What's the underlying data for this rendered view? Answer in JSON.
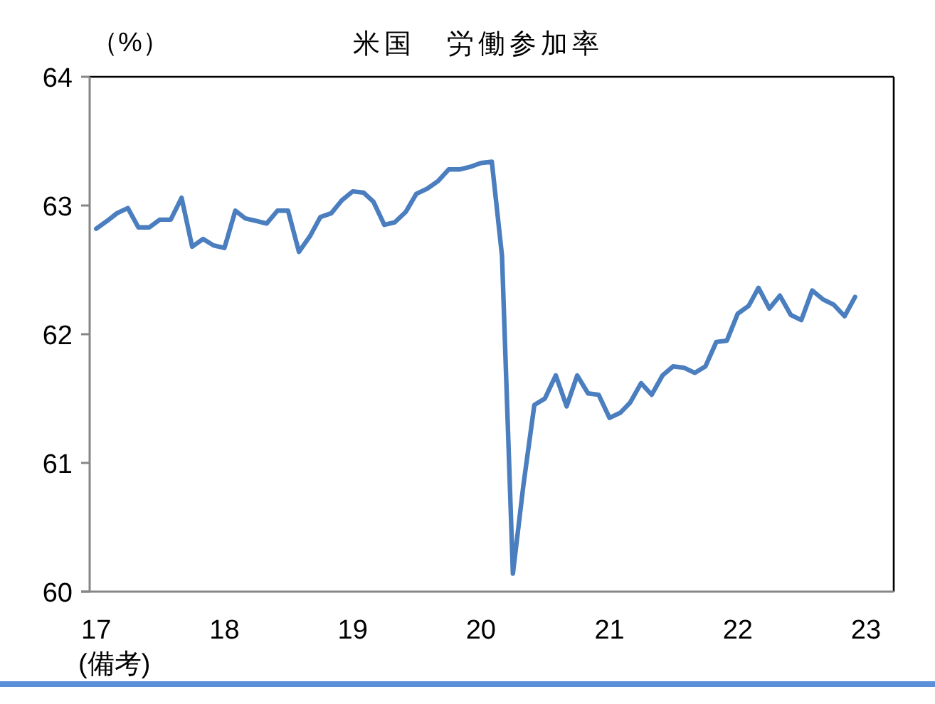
{
  "chart_data": {
    "type": "line",
    "title": "米国　労働参加率",
    "ylabel": "（%）",
    "annotations": [
      "(備考)"
    ],
    "x": [
      "2017-01",
      "2017-02",
      "2017-03",
      "2017-04",
      "2017-05",
      "2017-06",
      "2017-07",
      "2017-08",
      "2017-09",
      "2017-10",
      "2017-11",
      "2017-12",
      "2018-01",
      "2018-02",
      "2018-03",
      "2018-04",
      "2018-05",
      "2018-06",
      "2018-07",
      "2018-08",
      "2018-09",
      "2018-10",
      "2018-11",
      "2018-12",
      "2019-01",
      "2019-02",
      "2019-03",
      "2019-04",
      "2019-05",
      "2019-06",
      "2019-07",
      "2019-08",
      "2019-09",
      "2019-10",
      "2019-11",
      "2019-12",
      "2020-01",
      "2020-02",
      "2020-03",
      "2020-04",
      "2020-05",
      "2020-06",
      "2020-07",
      "2020-08",
      "2020-09",
      "2020-10",
      "2020-11",
      "2020-12",
      "2021-01",
      "2021-02",
      "2021-03",
      "2021-04",
      "2021-05",
      "2021-06",
      "2021-07",
      "2021-08",
      "2021-09",
      "2021-10",
      "2021-11",
      "2021-12",
      "2022-01",
      "2022-02",
      "2022-03",
      "2022-04",
      "2022-05",
      "2022-06",
      "2022-07",
      "2022-08",
      "2022-09",
      "2022-10",
      "2022-11",
      "2022-12"
    ],
    "series": [
      {
        "color": "#4a7ebf",
        "values": [
          62.82,
          62.88,
          62.94,
          62.98,
          62.83,
          62.83,
          62.89,
          62.89,
          63.06,
          62.68,
          62.74,
          62.69,
          62.67,
          62.96,
          62.9,
          62.88,
          62.86,
          62.96,
          62.96,
          62.64,
          62.76,
          62.91,
          62.94,
          63.04,
          63.11,
          63.1,
          63.03,
          62.85,
          62.87,
          62.95,
          63.09,
          63.13,
          63.19,
          63.28,
          63.28,
          63.3,
          63.33,
          63.34,
          62.61,
          60.14,
          60.83,
          61.45,
          61.5,
          61.68,
          61.44,
          61.68,
          61.54,
          61.53,
          61.35,
          61.39,
          61.47,
          61.62,
          61.53,
          61.68,
          61.75,
          61.74,
          61.7,
          61.75,
          61.94,
          61.95,
          62.16,
          62.22,
          62.36,
          62.2,
          62.3,
          62.15,
          62.11,
          62.34,
          62.27,
          62.23,
          62.14,
          62.29
        ]
      }
    ],
    "xlim": [
      "2016-11-19",
      "2023-03-21"
    ],
    "xticks": [
      {
        "value": "2017-01",
        "label": "17"
      },
      {
        "value": "2018-01",
        "label": "18"
      },
      {
        "value": "2019-01",
        "label": "19"
      },
      {
        "value": "2020-01",
        "label": "20"
      },
      {
        "value": "2021-01",
        "label": "21"
      },
      {
        "value": "2022-01",
        "label": "22"
      },
      {
        "value": "2023-01",
        "label": "23"
      }
    ],
    "ylim": [
      60,
      64
    ],
    "yticks": [
      60,
      61,
      62,
      63,
      64
    ]
  }
}
